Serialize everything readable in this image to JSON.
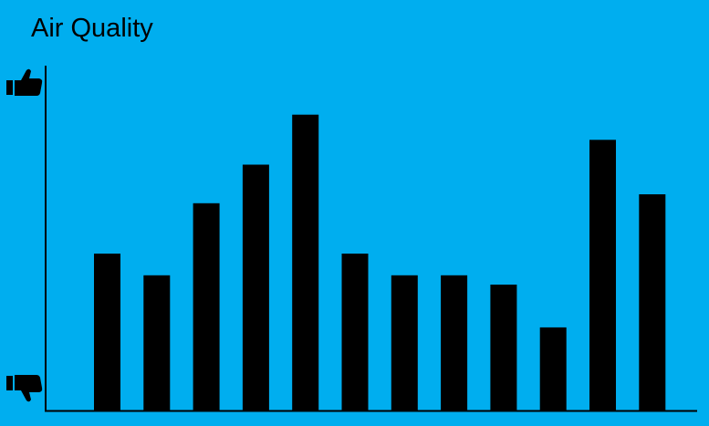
{
  "chart_data": {
    "type": "bar",
    "title": "Air Quality",
    "xlabel": "",
    "ylabel": "",
    "y_axis_icons": {
      "top": "thumbs-up-icon",
      "bottom": "thumbs-down-icon"
    },
    "ylim": [
      0,
      100
    ],
    "categories": [
      "",
      "",
      "",
      "",
      "",
      "",
      "",
      "",
      "",
      "",
      "",
      ""
    ],
    "values": [
      45.5,
      39.2,
      60.1,
      71.3,
      85.8,
      45.5,
      39.2,
      39.2,
      36.5,
      24.1,
      78.5,
      62.7
    ],
    "grid": false,
    "legend": "none"
  },
  "colors": {
    "background": "#00aeef",
    "bars": "#000000",
    "axis": "#000000",
    "text": "#000000"
  }
}
